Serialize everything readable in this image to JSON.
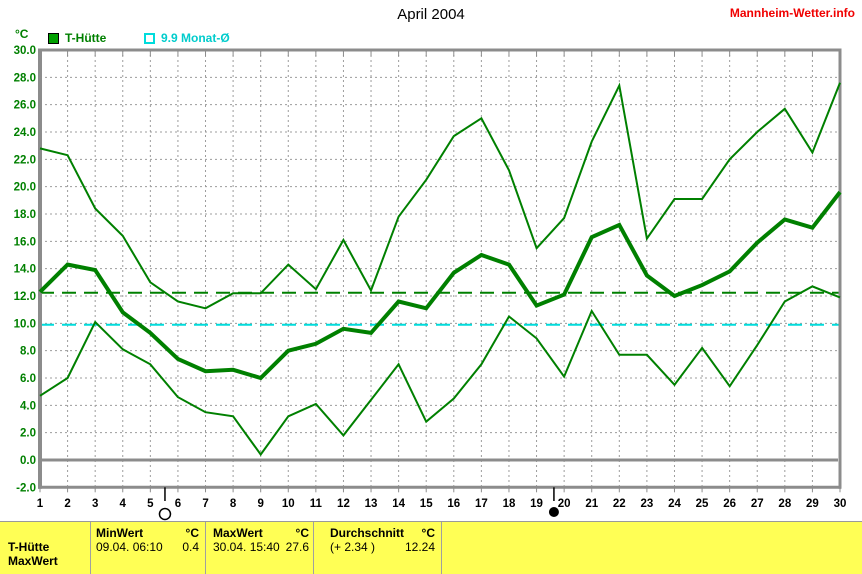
{
  "header": {
    "title": "April 2004",
    "site": "Mannheim-Wetter.info"
  },
  "legend": {
    "unit": "°C",
    "series1_label": "T-Hütte",
    "series2_label": "9.9 Monat-Ø"
  },
  "colors": {
    "line_green": "#008000",
    "legend_green_fill": "#00a000",
    "cyan": "#00dcdc",
    "red": "#f00000",
    "yellow": "#ffff55",
    "axis_gray": "#8c8c8c",
    "grid_gray": "#9c9c9c",
    "black": "#000000"
  },
  "chart_data": {
    "type": "line",
    "title": "April 2004",
    "xlabel": "",
    "ylabel": "°C",
    "ylim": [
      -2,
      30
    ],
    "ytick_step": 2,
    "grid": true,
    "legend_position": "top-left",
    "x": [
      1,
      2,
      3,
      4,
      5,
      6,
      7,
      8,
      9,
      10,
      11,
      12,
      13,
      14,
      15,
      16,
      17,
      18,
      19,
      20,
      21,
      22,
      23,
      24,
      25,
      26,
      27,
      28,
      29,
      30
    ],
    "series": [
      {
        "name": "T-Hütte Maximum",
        "color": "#008000",
        "width": 2,
        "values": [
          22.8,
          22.3,
          18.4,
          16.4,
          13.0,
          11.6,
          11.1,
          12.2,
          12.2,
          14.3,
          12.5,
          16.1,
          12.4,
          17.8,
          20.5,
          23.7,
          25.0,
          21.2,
          15.5,
          17.7,
          23.3,
          27.4,
          16.2,
          19.1,
          19.1,
          22.0,
          24.0,
          25.7,
          22.5,
          27.6
        ]
      },
      {
        "name": "T-Hütte Mittel",
        "color": "#008000",
        "width": 4,
        "values": [
          12.3,
          14.3,
          13.9,
          10.8,
          9.3,
          7.4,
          6.5,
          6.6,
          6.0,
          8.0,
          8.5,
          9.6,
          9.3,
          11.6,
          11.1,
          13.7,
          15.0,
          14.3,
          11.3,
          12.1,
          16.3,
          17.2,
          13.5,
          12.0,
          12.8,
          13.8,
          15.9,
          17.6,
          17.0,
          19.6
        ]
      },
      {
        "name": "T-Hütte Minimum",
        "color": "#008000",
        "width": 2,
        "values": [
          4.7,
          6.0,
          10.1,
          8.1,
          7.0,
          4.6,
          3.5,
          3.2,
          0.4,
          3.2,
          4.1,
          1.8,
          4.4,
          7.0,
          2.8,
          4.5,
          7.0,
          10.5,
          8.9,
          6.1,
          10.9,
          7.7,
          7.7,
          5.5,
          8.2,
          5.4,
          8.4,
          11.6,
          12.7,
          11.9
        ]
      }
    ],
    "reference_lines": [
      {
        "label": "Durchschnitt",
        "value": 12.24,
        "color": "#008000",
        "style": "dashed"
      },
      {
        "label": "9.9 Monat-Ø",
        "value": 9.9,
        "color": "#00dcdc",
        "style": "dashed"
      }
    ],
    "moon_markers": [
      {
        "day": 5.53,
        "phase": "full"
      },
      {
        "day": 19.63,
        "phase": "new"
      }
    ]
  },
  "table": {
    "row_labels": [
      "T-Hütte",
      "MaxWert"
    ],
    "columns": [
      {
        "header": "MinWert",
        "unit": "°C",
        "value_text": "09.04.  06:10",
        "value": "0.4"
      },
      {
        "header": "MaxWert",
        "unit": "°C",
        "value_text": "30.04.  15:40",
        "value": "27.6"
      },
      {
        "header": "Durchschnitt",
        "unit": "°C",
        "value_text": "(+ 2.34 )",
        "value": "12.24"
      }
    ]
  }
}
